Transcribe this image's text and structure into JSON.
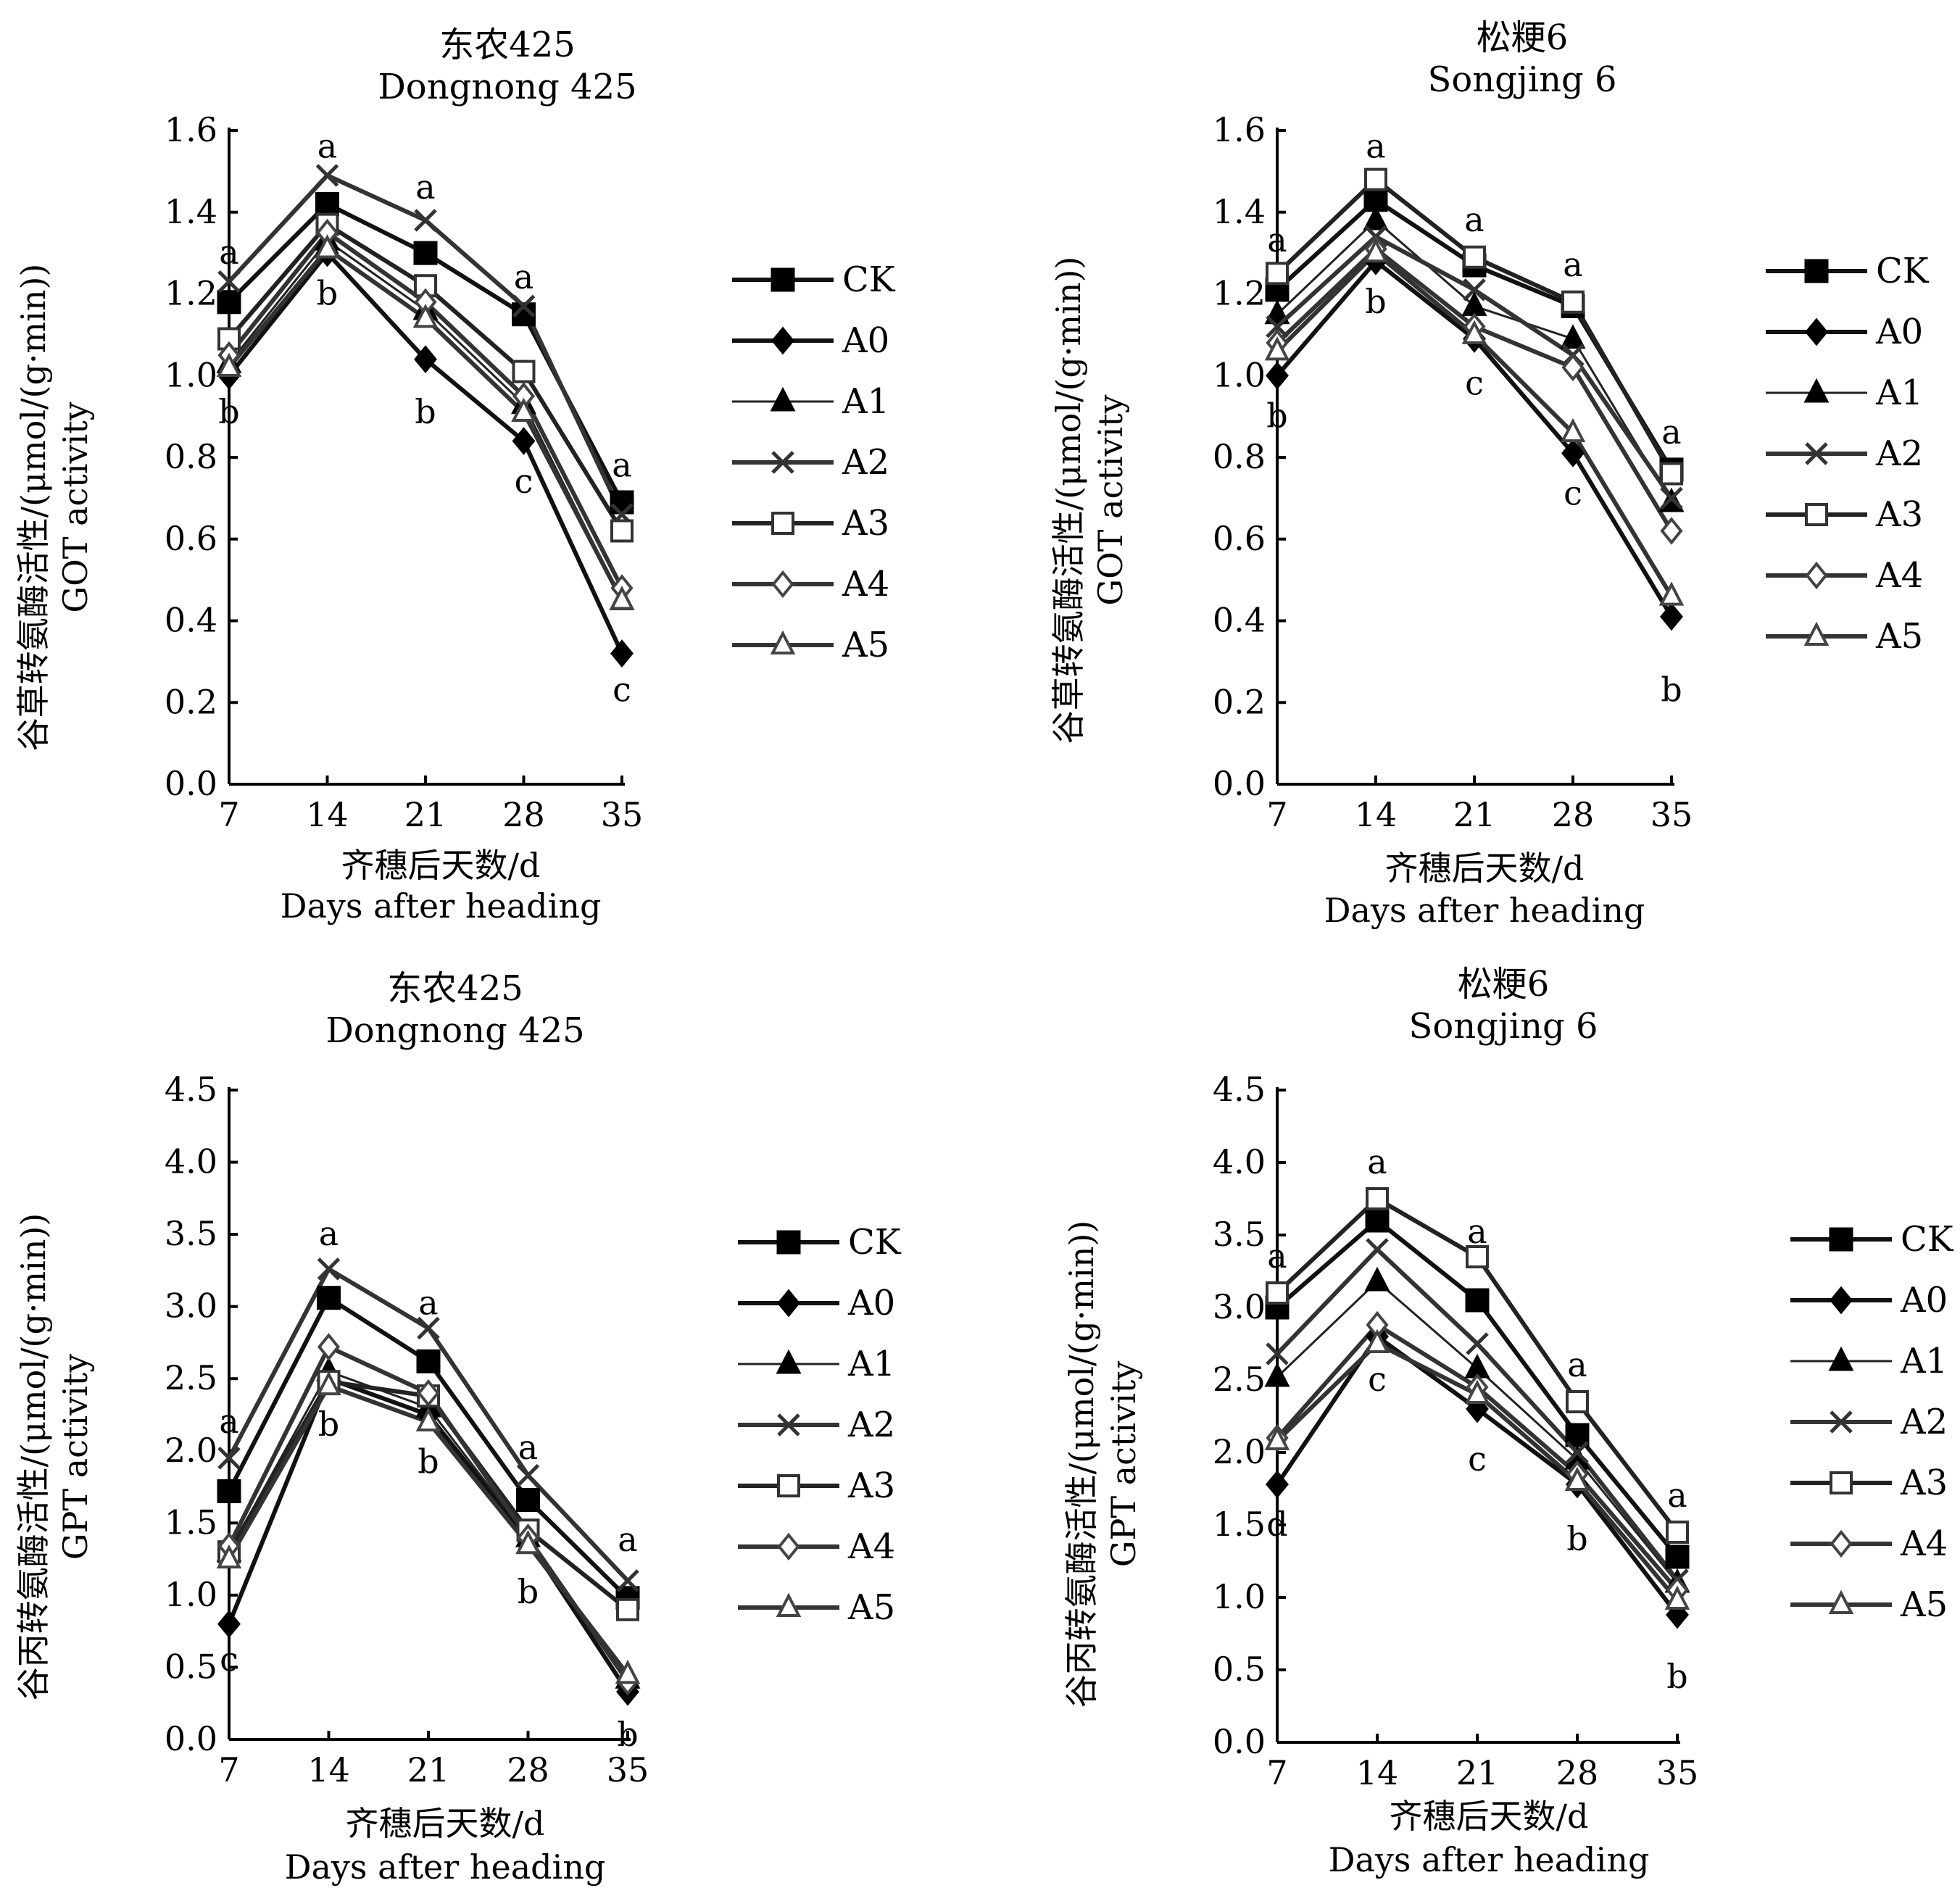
{
  "chart_data": [
    {
      "type": "line",
      "title": "东农425",
      "subtitle": "Dongnong 425",
      "xlabel": "齐穗后天数/d",
      "xlabel_en": "Days after heading",
      "ylabel": "谷草转氨酶活性/(μmol/(g·min))",
      "ylabel_en": "GOT activity",
      "x": [
        7,
        14,
        21,
        28,
        35
      ],
      "x_ticks": [
        "7",
        "14",
        "21",
        "28",
        "35"
      ],
      "ylim": [
        0,
        1.6
      ],
      "y_ticks": [
        "0.0",
        "0.2",
        "0.4",
        "0.6",
        "0.8",
        "1.0",
        "1.2",
        "1.4",
        "1.6"
      ],
      "legend_position": "right",
      "series": [
        {
          "name": "CK",
          "marker": "square-filled",
          "values": [
            1.18,
            1.42,
            1.3,
            1.15,
            0.69
          ]
        },
        {
          "name": "A0",
          "marker": "diamond-filled",
          "values": [
            1.0,
            1.3,
            1.04,
            0.84,
            0.32
          ]
        },
        {
          "name": "A1",
          "marker": "triangle-filled",
          "values": [
            1.03,
            1.33,
            1.16,
            0.93,
            0.45
          ]
        },
        {
          "name": "A2",
          "marker": "x",
          "values": [
            1.23,
            1.49,
            1.38,
            1.17,
            0.66
          ]
        },
        {
          "name": "A3",
          "marker": "square-open",
          "values": [
            1.09,
            1.37,
            1.22,
            1.01,
            0.62
          ]
        },
        {
          "name": "A4",
          "marker": "diamond-open",
          "values": [
            1.05,
            1.35,
            1.18,
            0.95,
            0.48
          ]
        },
        {
          "name": "A5",
          "marker": "triangle-open",
          "values": [
            1.02,
            1.31,
            1.14,
            0.91,
            0.45
          ]
        }
      ],
      "significance_labels": [
        {
          "x": 7,
          "y": 1.3,
          "text": "a"
        },
        {
          "x": 7,
          "y": 0.91,
          "text": "b"
        },
        {
          "x": 14,
          "y": 1.56,
          "text": "a"
        },
        {
          "x": 14,
          "y": 1.2,
          "text": "b"
        },
        {
          "x": 21,
          "y": 1.46,
          "text": "a"
        },
        {
          "x": 21,
          "y": 0.91,
          "text": "b"
        },
        {
          "x": 28,
          "y": 1.24,
          "text": "a"
        },
        {
          "x": 28,
          "y": 0.74,
          "text": "c"
        },
        {
          "x": 35,
          "y": 0.78,
          "text": "a"
        },
        {
          "x": 35,
          "y": 0.23,
          "text": "c"
        }
      ]
    },
    {
      "type": "line",
      "title": "松粳6",
      "subtitle": "Songjing 6",
      "xlabel": "齐穗后天数/d",
      "xlabel_en": "Days after heading",
      "ylabel": "谷草转氨酶活性/(μmol/(g·min))",
      "ylabel_en": "GOT activity",
      "x": [
        7,
        14,
        21,
        28,
        35
      ],
      "x_ticks": [
        "7",
        "14",
        "21",
        "28",
        "35"
      ],
      "ylim": [
        0,
        1.6
      ],
      "y_ticks": [
        "0.0",
        "0.2",
        "0.4",
        "0.6",
        "0.8",
        "1.0",
        "1.2",
        "1.4",
        "1.6"
      ],
      "legend_position": "right",
      "series": [
        {
          "name": "CK",
          "marker": "square-filled",
          "values": [
            1.21,
            1.43,
            1.27,
            1.17,
            0.77
          ]
        },
        {
          "name": "A0",
          "marker": "diamond-filled",
          "values": [
            1.0,
            1.28,
            1.09,
            0.81,
            0.41
          ]
        },
        {
          "name": "A1",
          "marker": "triangle-filled",
          "values": [
            1.15,
            1.38,
            1.17,
            1.09,
            0.69
          ]
        },
        {
          "name": "A2",
          "marker": "x",
          "values": [
            1.12,
            1.34,
            1.21,
            1.05,
            0.7
          ]
        },
        {
          "name": "A3",
          "marker": "square-open",
          "values": [
            1.25,
            1.48,
            1.29,
            1.18,
            0.76
          ]
        },
        {
          "name": "A4",
          "marker": "diamond-open",
          "values": [
            1.08,
            1.31,
            1.12,
            1.02,
            0.62
          ]
        },
        {
          "name": "A5",
          "marker": "triangle-open",
          "values": [
            1.06,
            1.3,
            1.1,
            0.86,
            0.46
          ]
        }
      ],
      "significance_labels": [
        {
          "x": 7,
          "y": 1.33,
          "text": "a"
        },
        {
          "x": 7,
          "y": 0.9,
          "text": "b"
        },
        {
          "x": 14,
          "y": 1.56,
          "text": "a"
        },
        {
          "x": 14,
          "y": 1.18,
          "text": "b"
        },
        {
          "x": 21,
          "y": 1.38,
          "text": "a"
        },
        {
          "x": 21,
          "y": 0.98,
          "text": "c"
        },
        {
          "x": 28,
          "y": 1.27,
          "text": "a"
        },
        {
          "x": 28,
          "y": 0.71,
          "text": "c"
        },
        {
          "x": 35,
          "y": 0.86,
          "text": "a"
        },
        {
          "x": 35,
          "y": 0.23,
          "text": "b"
        }
      ]
    },
    {
      "type": "line",
      "title": "东农425",
      "subtitle": "Dongnong 425",
      "xlabel": "齐穗后天数/d",
      "xlabel_en": "Days after heading",
      "ylabel": "谷丙转氨酶活性/(μmol/(g·min))",
      "ylabel_en": "GPT activity",
      "x": [
        7,
        14,
        21,
        28,
        35
      ],
      "x_ticks": [
        "7",
        "14",
        "21",
        "28",
        "35"
      ],
      "ylim": [
        0,
        4.5
      ],
      "y_ticks": [
        "0.0",
        "0.5",
        "1.0",
        "1.5",
        "2.0",
        "2.5",
        "3.0",
        "3.5",
        "4.0",
        "4.5"
      ],
      "legend_position": "right",
      "series": [
        {
          "name": "CK",
          "marker": "square-filled",
          "values": [
            1.72,
            3.06,
            2.62,
            1.66,
            0.98
          ]
        },
        {
          "name": "A0",
          "marker": "diamond-filled",
          "values": [
            0.8,
            2.5,
            2.25,
            1.38,
            0.33
          ]
        },
        {
          "name": "A1",
          "marker": "triangle-filled",
          "values": [
            1.3,
            2.55,
            2.3,
            1.4,
            0.42
          ]
        },
        {
          "name": "A2",
          "marker": "x",
          "values": [
            1.95,
            3.26,
            2.85,
            1.83,
            1.1
          ]
        },
        {
          "name": "A3",
          "marker": "square-open",
          "values": [
            1.3,
            2.48,
            2.38,
            1.45,
            0.9
          ]
        },
        {
          "name": "A4",
          "marker": "diamond-open",
          "values": [
            1.34,
            2.72,
            2.4,
            1.4,
            0.4
          ]
        },
        {
          "name": "A5",
          "marker": "triangle-open",
          "values": [
            1.25,
            2.45,
            2.2,
            1.35,
            0.45
          ]
        }
      ],
      "significance_labels": [
        {
          "x": 7,
          "y": 2.2,
          "text": "a"
        },
        {
          "x": 7,
          "y": 0.55,
          "text": "c"
        },
        {
          "x": 14,
          "y": 3.5,
          "text": "a"
        },
        {
          "x": 14,
          "y": 2.18,
          "text": "b"
        },
        {
          "x": 21,
          "y": 3.02,
          "text": "a"
        },
        {
          "x": 21,
          "y": 1.92,
          "text": "b"
        },
        {
          "x": 28,
          "y": 2.02,
          "text": "a"
        },
        {
          "x": 28,
          "y": 1.02,
          "text": "b"
        },
        {
          "x": 35,
          "y": 1.38,
          "text": "a"
        },
        {
          "x": 35,
          "y": 0.03,
          "text": "b"
        }
      ]
    },
    {
      "type": "line",
      "title": "松粳6",
      "subtitle": "Songjing 6",
      "xlabel": "齐穗后天数/d",
      "xlabel_en": "Days after heading",
      "ylabel": "谷丙转氨酶活性/(μmol/(g·min))",
      "ylabel_en": "GPT activity",
      "x": [
        7,
        14,
        21,
        28,
        35
      ],
      "x_ticks": [
        "7",
        "14",
        "21",
        "28",
        "35"
      ],
      "ylim": [
        0,
        4.5
      ],
      "y_ticks": [
        "0.0",
        "0.5",
        "1.0",
        "1.5",
        "2.0",
        "2.5",
        "3.0",
        "3.5",
        "4.0",
        "4.5"
      ],
      "legend_position": "right",
      "series": [
        {
          "name": "CK",
          "marker": "square-filled",
          "values": [
            3.0,
            3.6,
            3.05,
            2.12,
            1.28
          ]
        },
        {
          "name": "A0",
          "marker": "diamond-filled",
          "values": [
            1.78,
            2.8,
            2.3,
            1.78,
            0.88
          ]
        },
        {
          "name": "A1",
          "marker": "triangle-filled",
          "values": [
            2.52,
            3.18,
            2.58,
            1.95,
            1.1
          ]
        },
        {
          "name": "A2",
          "marker": "x",
          "values": [
            2.68,
            3.4,
            2.75,
            2.0,
            1.12
          ]
        },
        {
          "name": "A3",
          "marker": "square-open",
          "values": [
            3.1,
            3.75,
            3.35,
            2.35,
            1.45
          ]
        },
        {
          "name": "A4",
          "marker": "diamond-open",
          "values": [
            2.1,
            2.88,
            2.45,
            1.85,
            1.05
          ]
        },
        {
          "name": "A5",
          "marker": "triangle-open",
          "values": [
            2.08,
            2.75,
            2.4,
            1.8,
            0.98
          ]
        }
      ],
      "significance_labels": [
        {
          "x": 7,
          "y": 3.35,
          "text": "a"
        },
        {
          "x": 7,
          "y": 1.5,
          "text": "d"
        },
        {
          "x": 14,
          "y": 4.0,
          "text": "a"
        },
        {
          "x": 14,
          "y": 2.5,
          "text": "c"
        },
        {
          "x": 21,
          "y": 3.52,
          "text": "a"
        },
        {
          "x": 21,
          "y": 1.95,
          "text": "c"
        },
        {
          "x": 28,
          "y": 2.6,
          "text": "a"
        },
        {
          "x": 28,
          "y": 1.4,
          "text": "b"
        },
        {
          "x": 35,
          "y": 1.7,
          "text": "a"
        },
        {
          "x": 35,
          "y": 0.45,
          "text": "b"
        }
      ]
    }
  ]
}
